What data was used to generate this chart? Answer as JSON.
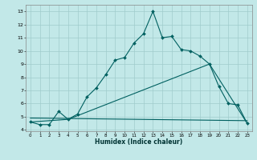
{
  "title": "",
  "xlabel": "Humidex (Indice chaleur)",
  "bg_color": "#c2e8e8",
  "grid_color": "#a0cccc",
  "line_color": "#006060",
  "xlim": [
    -0.5,
    23.5
  ],
  "ylim": [
    3.9,
    13.5
  ],
  "xticks": [
    0,
    1,
    2,
    3,
    4,
    5,
    6,
    7,
    8,
    9,
    10,
    11,
    12,
    13,
    14,
    15,
    16,
    17,
    18,
    19,
    20,
    21,
    22,
    23
  ],
  "yticks": [
    4,
    5,
    6,
    7,
    8,
    9,
    10,
    11,
    12,
    13
  ],
  "line1_x": [
    0,
    1,
    2,
    3,
    4,
    5,
    6,
    7,
    8,
    9,
    10,
    11,
    12,
    13,
    14,
    15,
    16,
    17,
    18,
    19,
    20,
    21,
    22,
    23
  ],
  "line1_y": [
    4.6,
    4.4,
    4.4,
    5.4,
    4.8,
    5.2,
    6.5,
    7.2,
    8.2,
    9.3,
    9.5,
    10.6,
    11.3,
    13.0,
    11.0,
    11.1,
    10.1,
    10.0,
    9.6,
    9.0,
    7.3,
    6.0,
    5.9,
    4.5
  ],
  "line2_x": [
    0,
    4,
    19,
    23
  ],
  "line2_y": [
    4.6,
    4.8,
    9.0,
    4.5
  ],
  "line3_x": [
    0,
    23
  ],
  "line3_y": [
    4.9,
    4.7
  ]
}
